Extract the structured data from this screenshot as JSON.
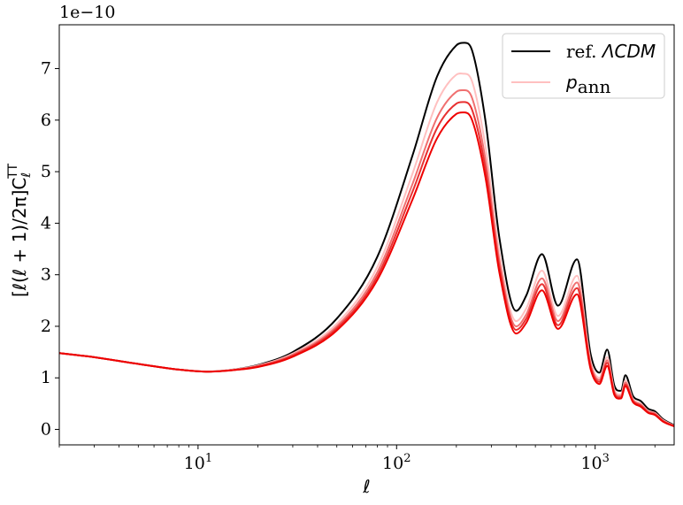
{
  "chart_data": {
    "type": "line",
    "title": "",
    "xlabel": "ℓ",
    "ylabel": "[ℓ(ℓ + 1)/2π]C",
    "ylabel_sub": "ℓ",
    "ylabel_sup": "TT",
    "y_offset_label": "1e−10",
    "xscale": "log",
    "xlim": [
      2,
      2500
    ],
    "ylim": [
      -0.3,
      7.85
    ],
    "yticks": [
      0,
      1,
      2,
      3,
      4,
      5,
      6,
      7
    ],
    "ytick_labels": [
      "0",
      "1",
      "2",
      "3",
      "4",
      "5",
      "6",
      "7"
    ],
    "xticks": [
      {
        "value": 10,
        "base": "10",
        "exp": "1"
      },
      {
        "value": 100,
        "base": "10",
        "exp": "2"
      },
      {
        "value": 1000,
        "base": "10",
        "exp": "3"
      }
    ],
    "grid": false,
    "legend": {
      "placement": "top-right",
      "entries": [
        {
          "prefix": "ref. ",
          "math": "ΛCDM",
          "color": "#000000"
        },
        {
          "prefix": "",
          "math": "p",
          "sub": "ann",
          "color": "#ffc0c0"
        }
      ]
    },
    "x": [
      2,
      3,
      5,
      8,
      11,
      15,
      20,
      30,
      50,
      80,
      120,
      160,
      200,
      220,
      240,
      280,
      330,
      400,
      450,
      540,
      650,
      810,
      950,
      1050,
      1150,
      1250,
      1350,
      1420,
      1550,
      1700,
      1850,
      2000,
      2200,
      2500
    ],
    "series": [
      {
        "color": "#000000",
        "values": [
          1.48,
          1.4,
          1.27,
          1.16,
          1.12,
          1.16,
          1.25,
          1.5,
          2.15,
          3.35,
          5.3,
          6.85,
          7.45,
          7.5,
          7.35,
          6.0,
          3.7,
          2.3,
          2.6,
          3.4,
          2.4,
          3.3,
          1.45,
          1.1,
          1.55,
          0.85,
          0.75,
          1.05,
          0.65,
          0.55,
          0.4,
          0.35,
          0.2,
          0.08
        ]
      },
      {
        "color": "#ffc0c0",
        "values": [
          1.48,
          1.4,
          1.27,
          1.16,
          1.12,
          1.16,
          1.24,
          1.47,
          2.05,
          3.15,
          4.95,
          6.35,
          6.88,
          6.9,
          6.75,
          5.5,
          3.4,
          2.1,
          2.35,
          3.08,
          2.2,
          2.98,
          1.32,
          1.0,
          1.4,
          0.77,
          0.68,
          0.95,
          0.59,
          0.5,
          0.36,
          0.32,
          0.18,
          0.07
        ]
      },
      {
        "color": "#f07070",
        "values": [
          1.48,
          1.4,
          1.27,
          1.16,
          1.12,
          1.15,
          1.23,
          1.45,
          2.0,
          3.05,
          4.75,
          6.05,
          6.55,
          6.58,
          6.43,
          5.25,
          3.25,
          2.0,
          2.23,
          2.93,
          2.1,
          2.85,
          1.26,
          0.96,
          1.34,
          0.73,
          0.65,
          0.91,
          0.57,
          0.48,
          0.35,
          0.31,
          0.17,
          0.07
        ]
      },
      {
        "color": "#e83030",
        "values": [
          1.48,
          1.4,
          1.27,
          1.16,
          1.12,
          1.15,
          1.22,
          1.43,
          1.96,
          2.97,
          4.6,
          5.85,
          6.32,
          6.35,
          6.2,
          5.07,
          3.14,
          1.93,
          2.15,
          2.82,
          2.02,
          2.74,
          1.21,
          0.92,
          1.29,
          0.7,
          0.62,
          0.87,
          0.55,
          0.46,
          0.33,
          0.29,
          0.16,
          0.06
        ]
      },
      {
        "color": "#ee0000",
        "values": [
          1.48,
          1.4,
          1.27,
          1.16,
          1.12,
          1.15,
          1.21,
          1.41,
          1.92,
          2.9,
          4.45,
          5.65,
          6.12,
          6.15,
          6.0,
          4.9,
          3.03,
          1.86,
          2.07,
          2.7,
          1.95,
          2.62,
          1.16,
          0.88,
          1.23,
          0.67,
          0.6,
          0.84,
          0.53,
          0.44,
          0.32,
          0.28,
          0.15,
          0.06
        ]
      }
    ]
  }
}
